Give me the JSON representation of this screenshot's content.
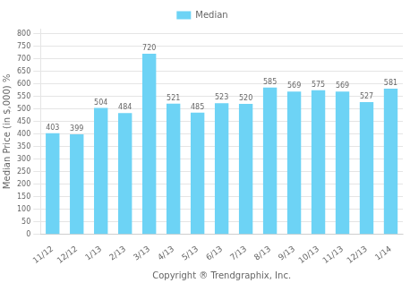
{
  "chart_data": {
    "type": "bar",
    "categories": [
      "11/12",
      "12/12",
      "1/13",
      "2/13",
      "3/13",
      "4/13",
      "5/13",
      "6/13",
      "7/13",
      "8/13",
      "9/13",
      "10/13",
      "11/13",
      "12/13",
      "1/14"
    ],
    "series": [
      {
        "name": "Median",
        "color": "#6DD3F5",
        "values": [
          403,
          399,
          504,
          484,
          720,
          521,
          485,
          523,
          520,
          585,
          569,
          575,
          569,
          527,
          581
        ]
      }
    ],
    "xlabel": "Copyright ® Trendgraphix, Inc.",
    "ylabel": "Median Price (in $,000) %",
    "ylim": [
      0,
      820
    ],
    "yticks": [
      0,
      50,
      100,
      150,
      200,
      250,
      300,
      350,
      400,
      450,
      500,
      550,
      600,
      650,
      700,
      750,
      800
    ],
    "grid": true,
    "legend": "top",
    "data_labels": true
  }
}
